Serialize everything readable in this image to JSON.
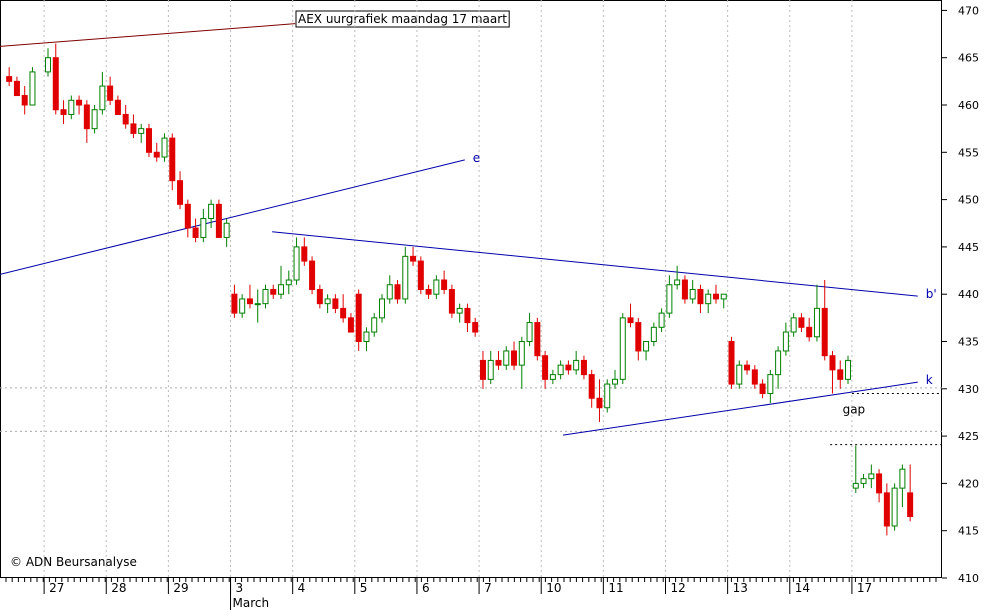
{
  "chart_data": {
    "type": "candlestick",
    "title": "AEX uurgrafiek maandag 17 maart",
    "copyright": "© ADN Beursanalyse",
    "month_label": "March",
    "up_color": "#008000",
    "down_color": "#e00000",
    "xlim": [
      -0.71,
      14.45
    ],
    "ylim": [
      410,
      471.1
    ],
    "yticks": [
      410,
      415,
      420,
      425,
      430,
      435,
      440,
      445,
      450,
      455,
      460,
      465,
      470
    ],
    "xticks": [
      {
        "value": 0,
        "label": "27"
      },
      {
        "value": 1,
        "label": "28"
      },
      {
        "value": 2,
        "label": "29"
      },
      {
        "value": 3,
        "label": "3"
      },
      {
        "value": 4,
        "label": "4"
      },
      {
        "value": 5,
        "label": "5"
      },
      {
        "value": 6,
        "label": "6"
      },
      {
        "value": 7,
        "label": "7"
      },
      {
        "value": 8,
        "label": "10"
      },
      {
        "value": 9,
        "label": "11"
      },
      {
        "value": 10,
        "label": "12"
      },
      {
        "value": 11,
        "label": "13"
      },
      {
        "value": 12,
        "label": "14"
      },
      {
        "value": 13,
        "label": "17"
      }
    ],
    "month_tick": 3,
    "x": [
      -0.5625,
      -0.4375,
      -0.3125,
      -0.1875,
      0.0625,
      0.1875,
      0.3125,
      0.4375,
      0.5625,
      0.6875,
      0.8125,
      0.9375,
      1.0625,
      1.1875,
      1.3125,
      1.4375,
      1.5625,
      1.6875,
      1.8125,
      1.9375,
      2.0625,
      2.1875,
      2.3125,
      2.4375,
      2.5625,
      2.6875,
      2.8125,
      2.9375,
      3.0625,
      3.1875,
      3.3125,
      3.4375,
      3.5625,
      3.6875,
      3.8125,
      3.9375,
      4.0625,
      4.1875,
      4.3125,
      4.4375,
      4.5625,
      4.6875,
      4.8125,
      4.9375,
      5.0625,
      5.1875,
      5.3125,
      5.4375,
      5.5625,
      5.6875,
      5.8125,
      5.9375,
      6.0625,
      6.1875,
      6.3125,
      6.4375,
      6.5625,
      6.6875,
      6.8125,
      6.9375,
      7.0625,
      7.1875,
      7.3125,
      7.4375,
      7.5625,
      7.6875,
      7.8125,
      7.9375,
      8.0625,
      8.1875,
      8.3125,
      8.4375,
      8.5625,
      8.6875,
      8.8125,
      8.9375,
      9.0625,
      9.1875,
      9.3125,
      9.4375,
      9.5625,
      9.6875,
      9.8125,
      9.9375,
      10.0625,
      10.1875,
      10.3125,
      10.4375,
      10.5625,
      10.6875,
      10.8125,
      10.9375,
      11.0625,
      11.1875,
      11.3125,
      11.4375,
      11.5625,
      11.6875,
      11.8125,
      11.9375,
      12.0625,
      12.1875,
      12.3125,
      12.4375,
      12.5625,
      12.6875,
      12.8125,
      12.9375,
      13.0625,
      13.1875,
      13.3125,
      13.4375,
      13.5625,
      13.6875,
      13.8125,
      13.9375
    ],
    "open": [
      463,
      462.5,
      461,
      460,
      463.5,
      465,
      459.5,
      459,
      460.5,
      460,
      457.5,
      459.5,
      462,
      460.5,
      459,
      458,
      457,
      457.5,
      455,
      454.5,
      456.5,
      452,
      449.5,
      447,
      446,
      448,
      449.5,
      446,
      440,
      438,
      439.5,
      439,
      439,
      440.5,
      440,
      441,
      441.5,
      445,
      443.5,
      440.5,
      439,
      439.5,
      438.5,
      437.5,
      440,
      435,
      436,
      437.5,
      439.5,
      441,
      439.5,
      444,
      443.5,
      440.5,
      440,
      441.5,
      440.5,
      438,
      438.5,
      437,
      433,
      431,
      433,
      432.5,
      434,
      432.5,
      435,
      437,
      433.5,
      431,
      431.5,
      432.5,
      432,
      433,
      431.5,
      429,
      428,
      430.5,
      431,
      437.5,
      437,
      434,
      435,
      436.5,
      438,
      441,
      441.5,
      439.5,
      440.5,
      439,
      440,
      439.5,
      435,
      430.5,
      432.5,
      432,
      430.5,
      429.5,
      431.5,
      434,
      436,
      437.5,
      436.5,
      435.5,
      438.5,
      433.5,
      432,
      431,
      419.5,
      420,
      420.5,
      421,
      419,
      415.5,
      419.5,
      419
    ],
    "high": [
      464,
      463,
      462,
      464,
      466,
      466.5,
      460.5,
      461,
      461,
      460.5,
      460,
      463.5,
      463,
      461,
      460,
      459,
      458,
      458,
      456,
      457,
      457,
      453,
      450,
      448,
      449,
      450,
      450,
      448,
      441,
      440,
      441,
      440.5,
      441,
      441,
      443,
      442.5,
      446,
      446,
      444,
      441,
      440,
      440,
      440,
      438,
      440.5,
      436.5,
      438,
      440,
      442,
      441.5,
      445,
      445,
      444,
      441,
      442,
      442.5,
      441,
      439,
      439,
      437.5,
      434,
      434,
      434,
      434.5,
      435,
      435.5,
      438,
      437.5,
      434,
      432,
      433,
      433,
      434,
      433.5,
      432,
      431,
      431,
      432,
      438,
      439,
      437.5,
      435,
      437,
      438.5,
      442,
      443,
      442,
      441.5,
      441,
      440.5,
      441,
      440,
      435.5,
      433,
      433,
      432.5,
      431,
      432,
      434.5,
      437,
      438,
      438,
      437.5,
      441,
      441.5,
      434,
      433,
      433.5,
      424,
      421,
      422,
      421.5,
      420,
      420,
      422,
      422
    ],
    "low": [
      462,
      461,
      459,
      460,
      463,
      459,
      458,
      458.5,
      459,
      456,
      457,
      459,
      460,
      459,
      457.5,
      456.5,
      456,
      454.5,
      454,
      454,
      451,
      449,
      446,
      445.5,
      445.5,
      447,
      446,
      445,
      437.5,
      437.5,
      438.5,
      437,
      438.5,
      439.5,
      439.5,
      440,
      441,
      443,
      440,
      438.5,
      438,
      438,
      437,
      436,
      434,
      434,
      435.5,
      437,
      439,
      439,
      439,
      443,
      440,
      439.5,
      439.5,
      440,
      437.5,
      437,
      436,
      435.5,
      430,
      430.5,
      432,
      432,
      432,
      430,
      434.5,
      433,
      430,
      430.5,
      431,
      431.5,
      431.5,
      431,
      428,
      426.5,
      427.5,
      430,
      430.5,
      436.5,
      433,
      433,
      434.5,
      436,
      437.5,
      440.5,
      439,
      439,
      438,
      438,
      439,
      438.5,
      430,
      430,
      431.5,
      430,
      429,
      428.5,
      430,
      433.5,
      435.5,
      436,
      435,
      435,
      433,
      429.5,
      430,
      430.5,
      419,
      419.5,
      419.5,
      418,
      414.5,
      415,
      417.5,
      416
    ],
    "close": [
      462.5,
      461,
      460,
      463.5,
      465,
      459.5,
      459,
      460.5,
      460,
      457.5,
      459.5,
      462,
      460.5,
      459,
      458,
      457,
      457.5,
      455,
      454.5,
      456.5,
      452,
      449.5,
      447,
      446,
      448,
      449.5,
      446,
      447.5,
      438,
      439.5,
      439,
      439,
      440.5,
      440,
      441,
      441.5,
      445,
      443.5,
      440.5,
      439,
      439.5,
      438.5,
      437.5,
      436,
      435,
      436,
      437.5,
      439.5,
      441,
      439.5,
      444,
      443.5,
      440.5,
      440,
      441.5,
      440.5,
      438,
      438.5,
      437,
      436,
      431,
      433,
      432.5,
      434,
      432.5,
      435,
      437,
      433.5,
      431,
      431.5,
      432.5,
      432,
      433,
      431.5,
      429,
      428,
      430.5,
      431,
      437.5,
      437,
      434,
      435,
      436.5,
      438,
      441,
      441.5,
      439.5,
      440.5,
      439,
      440,
      439.5,
      440,
      430.5,
      432.5,
      432,
      430.5,
      429.5,
      431.5,
      434,
      436,
      437.5,
      436.5,
      435.5,
      438.5,
      433.5,
      432,
      431,
      433,
      420,
      420.5,
      421,
      419,
      415.5,
      419.5,
      421.5,
      416.5
    ],
    "trendlines": [
      {
        "color": "#800000",
        "x": [
          -0.71,
          4.04
        ],
        "y": [
          466.2,
          468.6
        ]
      },
      {
        "label": "e",
        "color": "#0000aa",
        "x": [
          -0.71,
          6.77
        ],
        "y": [
          442.1,
          454.2
        ]
      },
      {
        "label": "b'",
        "color": "#0000aa",
        "x": [
          3.67,
          14.06
        ],
        "y": [
          446.6,
          439.8
        ]
      },
      {
        "label": "k",
        "color": "#0000aa",
        "x": [
          8.35,
          14.06
        ],
        "y": [
          425.1,
          430.7
        ]
      }
    ],
    "hlines": [
      {
        "y": 430.1,
        "x": [
          -0.71,
          14.45
        ],
        "color": "#aaaaaa"
      },
      {
        "y": 425.5,
        "x": [
          -0.71,
          14.45
        ],
        "color": "#aaaaaa"
      },
      {
        "y": 429.5,
        "x": [
          13.0,
          14.45
        ],
        "color": "#000000"
      },
      {
        "y": 424.1,
        "x": [
          12.65,
          14.45
        ],
        "color": "#000000"
      }
    ],
    "annotation": {
      "text": "gap",
      "x": 12.85,
      "y": 427.8
    }
  }
}
